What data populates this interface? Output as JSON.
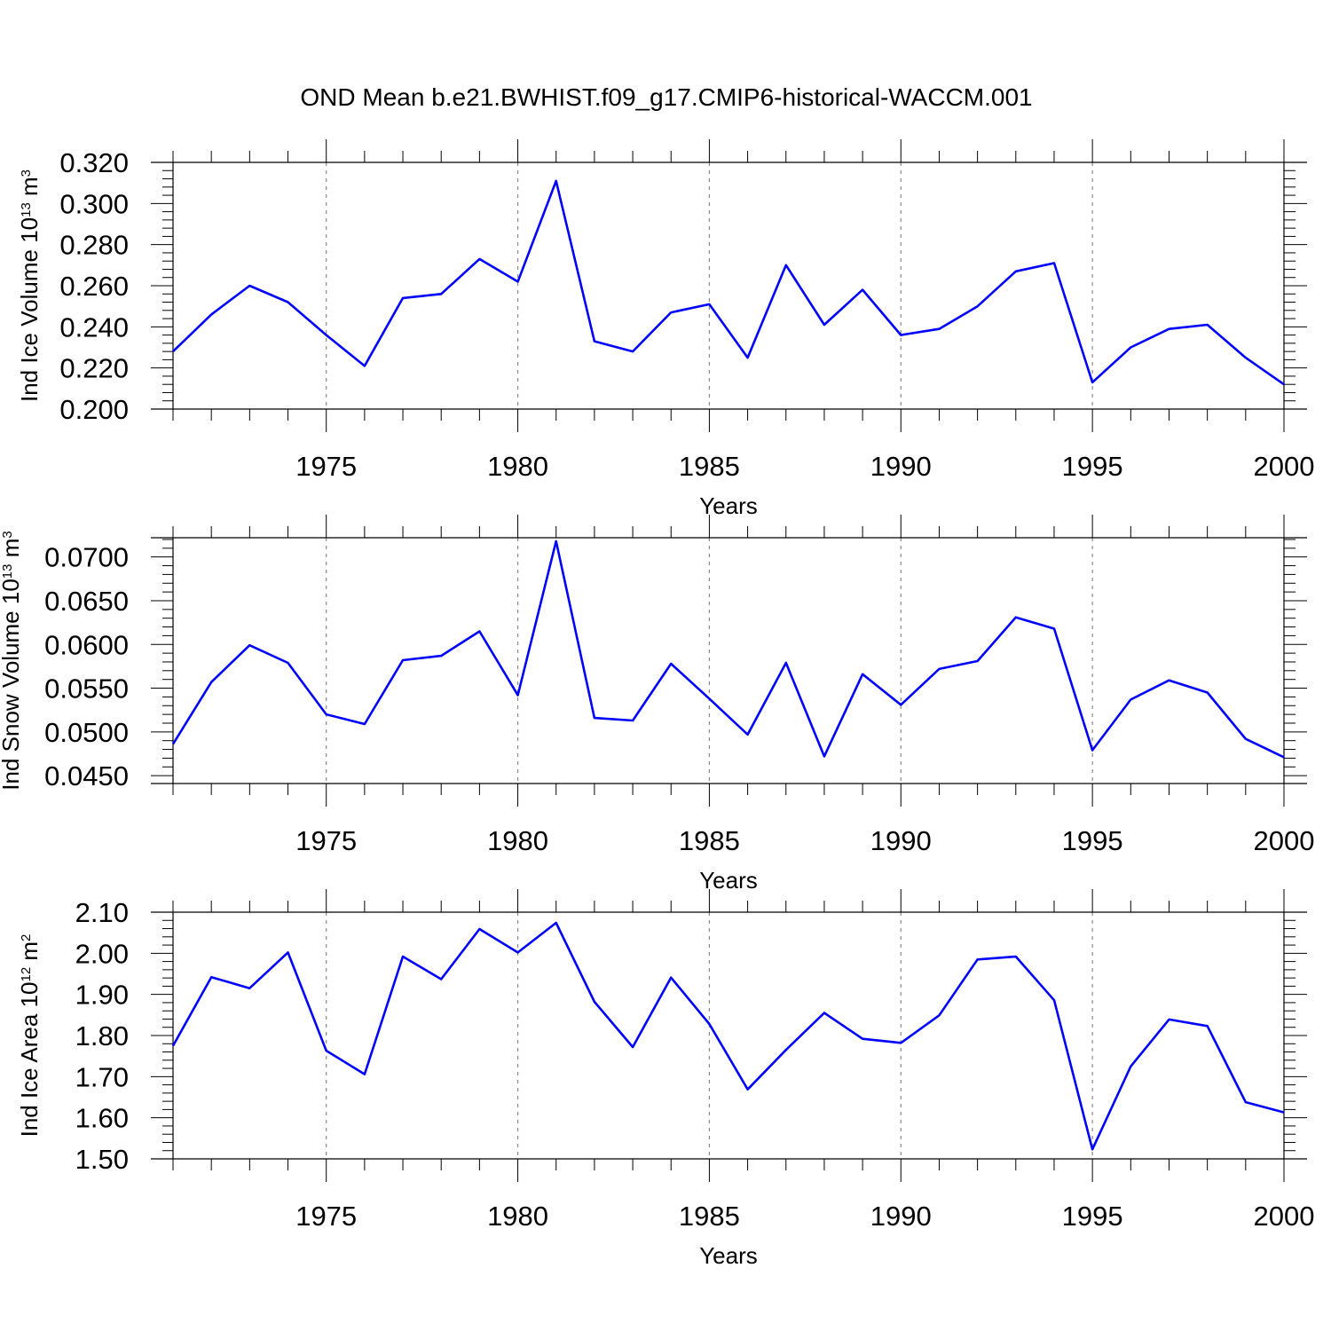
{
  "title": "OND Mean b.e21.BWHIST.f09_g17.CMIP6-historical-WACCM.001",
  "colors": {
    "line": "#0000ff",
    "axis": "#000000",
    "grid": "#888888"
  },
  "chart_data": [
    {
      "type": "line",
      "ylabel": {
        "main": "Ind Ice Volume 10",
        "exp": "13",
        "unit": " m",
        "unit_exp": "3"
      },
      "xlabel": "Years",
      "xlim": [
        1971,
        2000
      ],
      "ylim": [
        0.2,
        0.32
      ],
      "yticks": [
        "0.200",
        "0.220",
        "0.240",
        "0.260",
        "0.280",
        "0.300",
        "0.320"
      ],
      "xticks": [
        "1975",
        "1980",
        "1985",
        "1990",
        "1995",
        "2000"
      ],
      "grid": "x dashed",
      "series": [
        {
          "x": [
            1971,
            1972,
            1973,
            1974,
            1975,
            1976,
            1977,
            1978,
            1979,
            1980,
            1981,
            1982,
            1983,
            1984,
            1985,
            1986,
            1987,
            1988,
            1989,
            1990,
            1991,
            1992,
            1993,
            1994,
            1995,
            1996,
            1997,
            1998,
            1999,
            2000
          ],
          "values": [
            0.228,
            0.246,
            0.26,
            0.252,
            0.236,
            0.221,
            0.254,
            0.256,
            0.273,
            0.262,
            0.311,
            0.233,
            0.228,
            0.247,
            0.251,
            0.225,
            0.27,
            0.241,
            0.258,
            0.236,
            0.239,
            0.25,
            0.267,
            0.271,
            0.213,
            0.23,
            0.239,
            0.241,
            0.225,
            0.212
          ]
        }
      ]
    },
    {
      "type": "line",
      "ylabel": {
        "main": "Ind Snow Volume 10",
        "exp": "13",
        "unit": " m",
        "unit_exp": "3"
      },
      "xlabel": "Years",
      "xlim": [
        1971,
        2000
      ],
      "ylim": [
        0.0441,
        0.0722
      ],
      "yticks": [
        "0.0450",
        "0.0500",
        "0.0550",
        "0.0600",
        "0.0650",
        "0.0700"
      ],
      "xticks": [
        "1975",
        "1980",
        "1985",
        "1990",
        "1995",
        "2000"
      ],
      "grid": "x dashed",
      "series": [
        {
          "x": [
            1971,
            1972,
            1973,
            1974,
            1975,
            1976,
            1977,
            1978,
            1979,
            1980,
            1981,
            1982,
            1983,
            1984,
            1985,
            1986,
            1987,
            1988,
            1989,
            1990,
            1991,
            1992,
            1993,
            1994,
            1995,
            1996,
            1997,
            1998,
            1999,
            2000
          ],
          "values": [
            0.0486,
            0.0557,
            0.0599,
            0.0579,
            0.052,
            0.0509,
            0.0582,
            0.0587,
            0.0615,
            0.0542,
            0.0718,
            0.0516,
            0.0513,
            0.0578,
            0.0538,
            0.0497,
            0.0579,
            0.0472,
            0.0566,
            0.0531,
            0.0572,
            0.0581,
            0.0631,
            0.0618,
            0.0479,
            0.0537,
            0.0559,
            0.0545,
            0.0492,
            0.0471
          ]
        }
      ]
    },
    {
      "type": "line",
      "ylabel": {
        "main": "Ind Ice Area 10",
        "exp": "12",
        "unit": " m",
        "unit_exp": "2"
      },
      "xlabel": "Years",
      "xlim": [
        1971,
        2000
      ],
      "ylim": [
        1.5,
        2.1
      ],
      "yticks": [
        "1.50",
        "1.60",
        "1.70",
        "1.80",
        "1.90",
        "2.00",
        "2.10"
      ],
      "xticks": [
        "1975",
        "1980",
        "1985",
        "1990",
        "1995",
        "2000"
      ],
      "grid": "x dashed",
      "series": [
        {
          "x": [
            1971,
            1972,
            1973,
            1974,
            1975,
            1976,
            1977,
            1978,
            1979,
            1980,
            1981,
            1982,
            1983,
            1984,
            1985,
            1986,
            1987,
            1988,
            1989,
            1990,
            1991,
            1992,
            1993,
            1994,
            1995,
            1996,
            1997,
            1998,
            1999,
            2000
          ],
          "values": [
            1.775,
            1.942,
            1.915,
            2.002,
            1.763,
            1.706,
            1.992,
            1.937,
            2.059,
            2.002,
            2.074,
            1.882,
            1.772,
            1.941,
            1.828,
            1.669,
            1.765,
            1.855,
            1.792,
            1.782,
            1.849,
            1.985,
            1.992,
            1.886,
            1.523,
            1.725,
            1.839,
            1.823,
            1.638,
            1.613
          ]
        }
      ]
    }
  ]
}
